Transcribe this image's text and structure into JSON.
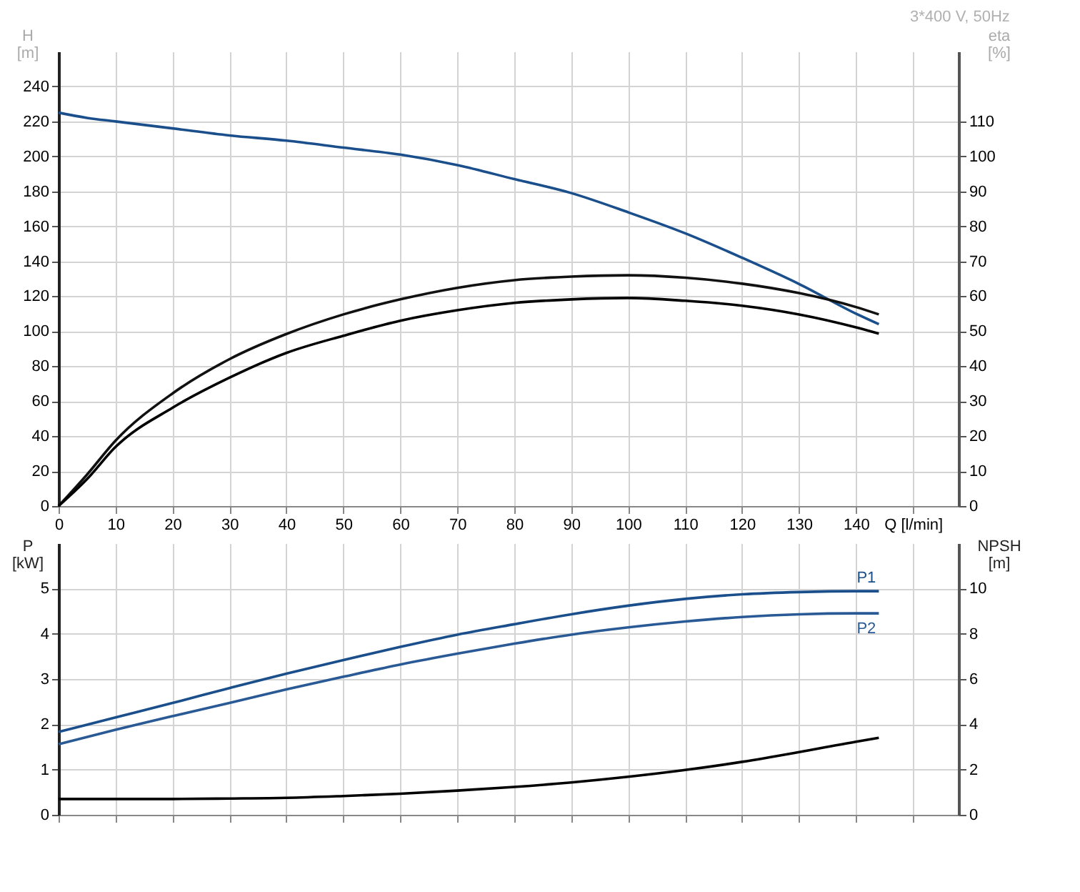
{
  "chart_data": [
    {
      "type": "line",
      "title": "3*400 V, 50Hz",
      "ylabel": "H [m]",
      "y2label": "eta [%]",
      "x": [
        0,
        5,
        10,
        20,
        30,
        40,
        50,
        60,
        70,
        80,
        90,
        100,
        110,
        120,
        130,
        140,
        144
      ],
      "xlim": [
        0,
        158
      ],
      "xticks": [
        0,
        10,
        20,
        30,
        40,
        50,
        60,
        70,
        80,
        90,
        100,
        110,
        120,
        130,
        140,
        {
          "value": 150,
          "label": "Q [l/min]"
        }
      ],
      "ylim": [
        0,
        260
      ],
      "yticks": [
        0,
        20,
        40,
        60,
        80,
        100,
        120,
        140,
        160,
        180,
        200,
        220,
        240
      ],
      "y2lim": [
        0,
        130
      ],
      "y2ticks": [
        0,
        10,
        20,
        30,
        40,
        50,
        60,
        70,
        80,
        90,
        100,
        110
      ],
      "grid": true,
      "legend": false,
      "series": [
        {
          "color": "#1a4f8c",
          "values": [
            225,
            222,
            220,
            216,
            212,
            209,
            205,
            201,
            195,
            187,
            179,
            168,
            156,
            142,
            127,
            110,
            104
          ]
        },
        {
          "color": "#111111",
          "axis": "y2",
          "values": [
            0,
            9,
            18.7,
            32.2,
            42,
            49.2,
            54.8,
            59.1,
            62.4,
            64.6,
            65.6,
            66,
            65.3,
            63.6,
            60.9,
            56.9,
            54.8
          ]
        },
        {
          "color": "#000000",
          "axis": "y2",
          "values": [
            0,
            7.7,
            16.9,
            28.1,
            36.7,
            43.8,
            48.7,
            53,
            56,
            58.1,
            59.1,
            59.5,
            58.7,
            57.3,
            54.8,
            51.1,
            49.3
          ]
        }
      ]
    },
    {
      "type": "line",
      "ylabel": "P [kW]",
      "y2label": "NPSH [m]",
      "x": [
        0,
        10,
        20,
        30,
        40,
        50,
        60,
        70,
        80,
        90,
        100,
        110,
        120,
        130,
        140,
        144
      ],
      "xlim": [
        0,
        158
      ],
      "xticks": [
        0,
        10,
        20,
        30,
        40,
        50,
        60,
        70,
        80,
        90,
        100,
        110,
        120,
        130,
        140,
        150
      ],
      "ylim": [
        0,
        6
      ],
      "yticks": [
        0,
        1,
        2,
        3,
        4,
        5
      ],
      "y2lim": [
        0,
        12
      ],
      "y2ticks": [
        0,
        2,
        4,
        6,
        8,
        10
      ],
      "grid": true,
      "legend": false,
      "tick_labels": "y",
      "series": [
        {
          "name": "P1",
          "color": "#1a4f8c",
          "values": [
            1.83,
            2.15,
            2.47,
            2.8,
            3.12,
            3.42,
            3.71,
            3.98,
            4.21,
            4.43,
            4.62,
            4.77,
            4.87,
            4.92,
            4.94,
            4.94
          ]
        },
        {
          "name": "P2",
          "color": "#2a5a95",
          "values": [
            1.56,
            1.88,
            2.18,
            2.47,
            2.77,
            3.05,
            3.32,
            3.56,
            3.78,
            3.98,
            4.14,
            4.27,
            4.37,
            4.43,
            4.45,
            4.45
          ]
        },
        {
          "color": "#000000",
          "axis": "y2",
          "values": [
            0.7,
            0.7,
            0.7,
            0.72,
            0.75,
            0.83,
            0.93,
            1.07,
            1.23,
            1.43,
            1.68,
            1.98,
            2.34,
            2.77,
            3.23,
            3.4
          ]
        }
      ]
    }
  ]
}
